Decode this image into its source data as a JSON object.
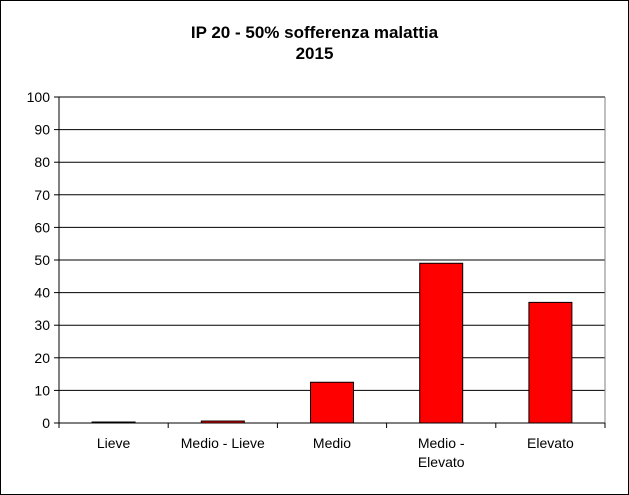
{
  "chart_data": {
    "type": "bar",
    "title": "IP 20 - 50% sofferenza malattia",
    "subtitle": "2015",
    "categories": [
      [
        "Lieve"
      ],
      [
        "Medio - Lieve"
      ],
      [
        "Medio"
      ],
      [
        "Medio -",
        "Elevato"
      ],
      [
        "Elevato"
      ]
    ],
    "values": [
      0.3,
      0.6,
      12.5,
      49,
      37
    ],
    "ylim": [
      0,
      100
    ],
    "yticks": [
      0,
      10,
      20,
      30,
      40,
      50,
      60,
      70,
      80,
      90,
      100
    ],
    "grid": true,
    "legend": "none",
    "bar_color": "#ff0000",
    "bar_stroke": "#000000"
  }
}
